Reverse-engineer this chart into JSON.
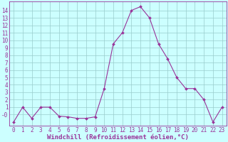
{
  "x": [
    0,
    1,
    2,
    3,
    4,
    5,
    6,
    7,
    8,
    9,
    10,
    11,
    12,
    13,
    14,
    15,
    16,
    17,
    18,
    19,
    20,
    21,
    22,
    23
  ],
  "y": [
    -1,
    1,
    -0.5,
    1,
    1,
    -0.2,
    -0.3,
    -0.5,
    -0.5,
    -0.3,
    3.5,
    9.5,
    11,
    14,
    14.5,
    13,
    9.5,
    7.5,
    5,
    3.5,
    3.5,
    2,
    -1,
    1
  ],
  "line_color": "#993399",
  "marker": "D",
  "marker_size": 2.0,
  "background_color": "#ccffff",
  "grid_color": "#99cccc",
  "xlabel": "Windchill (Refroidissement éolien,°C)",
  "xlabel_fontsize": 6.5,
  "tick_fontsize": 5.5,
  "ytick_labels": [
    "-0",
    "1",
    "2",
    "3",
    "4",
    "5",
    "6",
    "7",
    "8",
    "9",
    "10",
    "11",
    "12",
    "13",
    "14"
  ],
  "ytick_vals": [
    0,
    1,
    2,
    3,
    4,
    5,
    6,
    7,
    8,
    9,
    10,
    11,
    12,
    13,
    14
  ],
  "xtick_labels": [
    "0",
    "1",
    "2",
    "3",
    "4",
    "5",
    "6",
    "7",
    "8",
    "9",
    "10",
    "11",
    "12",
    "13",
    "14",
    "15",
    "16",
    "17",
    "18",
    "19",
    "20",
    "21",
    "22",
    "23"
  ],
  "xlim": [
    -0.5,
    23.5
  ],
  "ylim": [
    -1.5,
    15.2
  ],
  "spine_color": "#993399",
  "linewidth": 0.8,
  "marker_edge_width": 0.3
}
